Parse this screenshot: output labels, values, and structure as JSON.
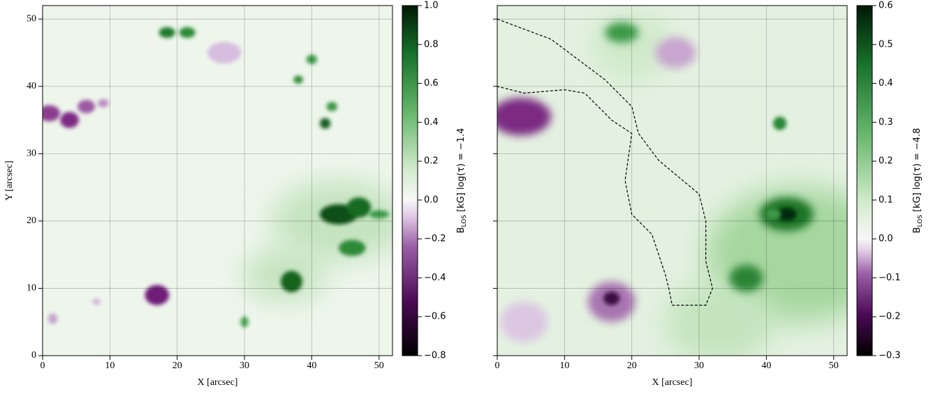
{
  "chart_data": [
    {
      "type": "heatmap",
      "xlabel": "X [arcsec]",
      "ylabel": "Y [arcsec]",
      "xlim": [
        0,
        52
      ],
      "ylim": [
        0,
        52
      ],
      "xticks": [
        0,
        10,
        20,
        30,
        40,
        50
      ],
      "yticks": [
        0,
        10,
        20,
        30,
        40,
        50
      ],
      "grid": true,
      "colorbar_label": {
        "symbol": "B",
        "subscript": "LOS",
        "text": " [kG] log(τ) = −1.4"
      },
      "clim": [
        -0.8,
        1.0
      ],
      "cticks": [
        {
          "value": -0.8,
          "label": "−0.8"
        },
        {
          "value": -0.6,
          "label": "−0.6"
        },
        {
          "value": -0.4,
          "label": "−0.4"
        },
        {
          "value": -0.2,
          "label": "−0.2"
        },
        {
          "value": 0,
          "label": "0.0"
        },
        {
          "value": 0.2,
          "label": "0.2"
        },
        {
          "value": 0.4,
          "label": "0.4"
        },
        {
          "value": 0.6,
          "label": "0.6"
        },
        {
          "value": 0.8,
          "label": "0.8"
        },
        {
          "value": 1.0,
          "label": "1.0"
        }
      ]
    },
    {
      "type": "heatmap",
      "xlabel": "X [arcsec]",
      "xlim": [
        0,
        52
      ],
      "ylim": [
        0,
        52
      ],
      "xticks": [
        0,
        10,
        20,
        30,
        40,
        50
      ],
      "yticks": [
        0,
        10,
        20,
        30,
        40,
        50
      ],
      "grid": true,
      "colorbar_label": {
        "symbol": "B",
        "subscript": "LOS",
        "text": " [kG] log(τ) = −4.8"
      },
      "clim": [
        -0.3,
        0.6
      ],
      "cticks": [
        {
          "value": -0.3,
          "label": "−0.3"
        },
        {
          "value": -0.2,
          "label": "−0.2"
        },
        {
          "value": -0.1,
          "label": "−0.1"
        },
        {
          "value": 0,
          "label": "0.0"
        },
        {
          "value": 0.1,
          "label": "0.1"
        },
        {
          "value": 0.2,
          "label": "0.2"
        },
        {
          "value": 0.3,
          "label": "0.3"
        },
        {
          "value": 0.4,
          "label": "0.4"
        },
        {
          "value": 0.5,
          "label": "0.5"
        },
        {
          "value": 0.6,
          "label": "0.6"
        }
      ]
    }
  ]
}
